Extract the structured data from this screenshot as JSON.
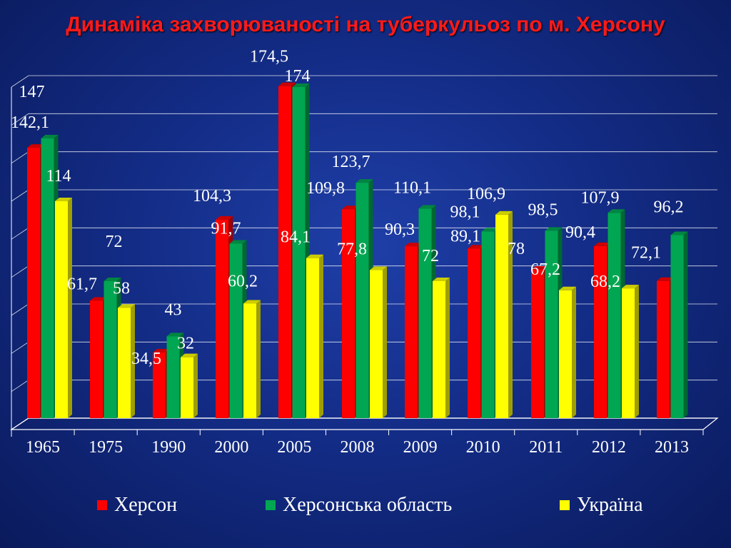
{
  "chart_data": {
    "type": "bar",
    "title": "Динаміка захворюваності на туберкульоз по м. Херсону",
    "categories": [
      "1965",
      "1975",
      "1990",
      "2000",
      "2005",
      "2008",
      "2009",
      "2010",
      "2011",
      "2012",
      "2013"
    ],
    "series": [
      {
        "name": "Херсон",
        "color": "#ff0000",
        "values": [
          142.1,
          61.7,
          34.5,
          104.3,
          174.5,
          109.8,
          90.3,
          89.1,
          78,
          90.4,
          72.1
        ],
        "labels": [
          "142,1",
          "61,7",
          "34,5",
          "104,3",
          "174,5",
          "109,8",
          "90,3",
          "89,1",
          "78",
          "90,4",
          "72,1"
        ]
      },
      {
        "name": "Херсонська область",
        "color": "#00a651",
        "values": [
          147,
          72,
          43,
          91.7,
          174,
          123.7,
          110.1,
          98.1,
          98.5,
          107.9,
          96.2
        ],
        "labels": [
          "147",
          "72",
          "43",
          "91,7",
          "174",
          "123,7",
          "110,1",
          "98,1",
          "98,5",
          "107,9",
          "96,2"
        ]
      },
      {
        "name": "Україна",
        "color": "#ffff00",
        "values": [
          114,
          58,
          32,
          60.2,
          84.1,
          77.8,
          72,
          106.9,
          67.2,
          68.2,
          null
        ],
        "labels": [
          "114",
          "58",
          "32",
          "60,2",
          "84,1",
          "77,8",
          "72",
          "106,9",
          "67,2",
          "68,2",
          ""
        ]
      }
    ],
    "ylim": [
      0,
      180
    ],
    "grid": true,
    "legend": "bottom"
  }
}
